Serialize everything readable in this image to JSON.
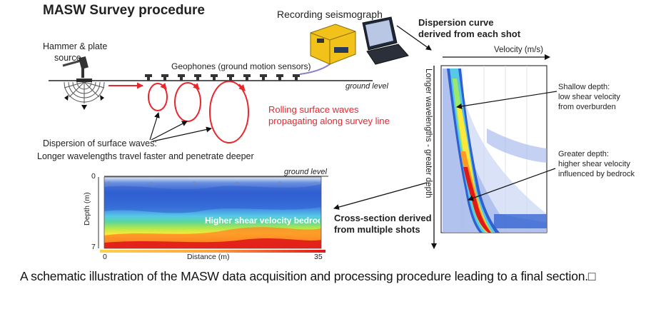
{
  "title": "MASW Survey procedure",
  "labels": {
    "seismograph": "Recording seismograph",
    "hammer_line1": "Hammer & plate",
    "hammer_line2": "source",
    "geophones": "Geophones (ground motion sensors)",
    "ground_level_top": "ground level",
    "rolling_line1": "Rolling surface waves",
    "rolling_line2": "propagating along survey line",
    "dispersion_line1": "Dispersion of surface waves:",
    "dispersion_line2": "Longer wavelengths travel faster and penetrate deeper",
    "dispersion_curve_line1": "Dispersion curve",
    "dispersion_curve_line2": "derived from each shot",
    "velocity_axis": "Velocity (m/s)",
    "vertical_axis": "Longer wavelengths - greater depth",
    "shallow_line1": "Shallow depth:",
    "shallow_line2": "low shear velocity",
    "shallow_line3": "from overburden",
    "greater_line1": "Greater depth:",
    "greater_line2": "higher shear velocity",
    "greater_line3": "influenced by bedrock",
    "cross_line1": "Cross-section derived",
    "cross_line2": "from multiple shots",
    "ground_level_section": "ground level",
    "depth_axis": "Depth (m)",
    "depth_top": "0",
    "depth_bottom": "7",
    "distance_axis": "Distance (m)",
    "distance_start": "0",
    "distance_end": "35",
    "section_overlay": "Higher shear velocity bedrock"
  },
  "caption": "A schematic illustration of the MASW data acquisition and processing procedure leading to a final section.□",
  "colors": {
    "wave_red": "#e8262d",
    "seismograph_yellow": "#f2c21b",
    "cable_purple": "#8a82c4",
    "low_velocity_blue": "#2f5fd0",
    "high_velocity_red": "#e01818"
  }
}
